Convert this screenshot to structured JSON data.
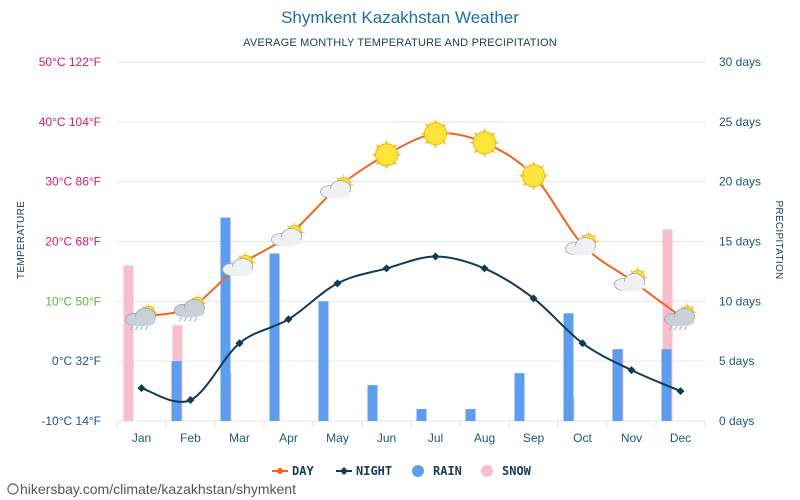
{
  "page": {
    "title": "Shymkent Kazakhstan Weather",
    "subtitle": "AVERAGE MONTHLY TEMPERATURE AND PRECIPITATION",
    "watermark": "hikersbay.com/climate/kazakhstan/shymkent"
  },
  "chart_data": {
    "type": "line+bar",
    "title": "Shymkent Kazakhstan Weather",
    "subtitle": "AVERAGE MONTHLY TEMPERATURE AND PRECIPITATION",
    "ylabel_left": "TEMPERATURE",
    "ylabel_right": "PRECIPITATION",
    "categories": [
      "Jan",
      "Feb",
      "Mar",
      "Apr",
      "May",
      "Jun",
      "Jul",
      "Aug",
      "Sep",
      "Oct",
      "Nov",
      "Dec"
    ],
    "left_axis": {
      "range_c": [
        -10,
        50
      ],
      "ticks": [
        {
          "c": 50,
          "label": "50°C 122°F",
          "color": "#d6196b"
        },
        {
          "c": 40,
          "label": "40°C 104°F",
          "color": "#d6196b"
        },
        {
          "c": 30,
          "label": "30°C 86°F",
          "color": "#d6196b"
        },
        {
          "c": 20,
          "label": "20°C 68°F",
          "color": "#d6196b"
        },
        {
          "c": 10,
          "label": "10°C 50°F",
          "color": "#57b93a"
        },
        {
          "c": 0,
          "label": "0°C 32°F",
          "color": "#1e4fa0"
        },
        {
          "c": -10,
          "label": "-10°C 14°F",
          "color": "#1e4fa0"
        }
      ]
    },
    "right_axis": {
      "range_days": [
        0,
        30
      ],
      "ticks": [
        {
          "d": 30,
          "label": "30 days"
        },
        {
          "d": 25,
          "label": "25 days"
        },
        {
          "d": 20,
          "label": "20 days"
        },
        {
          "d": 15,
          "label": "15 days"
        },
        {
          "d": 10,
          "label": "10 days"
        },
        {
          "d": 5,
          "label": "5 days"
        },
        {
          "d": 0,
          "label": "0 days"
        }
      ]
    },
    "grid": true,
    "legend_position": "bottom",
    "series": [
      {
        "name": "DAY",
        "kind": "line",
        "axis": "left",
        "color": "#f0651d",
        "values": [
          7.5,
          9,
          16,
          21,
          29,
          34.5,
          38,
          36.5,
          31,
          19.5,
          13.5,
          7.5
        ]
      },
      {
        "name": "NIGHT",
        "kind": "line",
        "axis": "left",
        "color": "#0f3b57",
        "values": [
          -4.5,
          -6.5,
          3,
          7,
          13,
          15.5,
          17.5,
          15.5,
          10.5,
          3,
          -1.5,
          -5
        ]
      },
      {
        "name": "RAIN",
        "kind": "bar",
        "axis": "right",
        "color": "#5e9cee",
        "values": [
          0,
          5,
          17,
          14,
          10,
          3,
          1,
          1,
          4,
          9,
          6,
          6
        ]
      },
      {
        "name": "SNOW",
        "kind": "bar",
        "axis": "right",
        "color": "#f7bfcd",
        "values": [
          13,
          8,
          4,
          0,
          0,
          0,
          0,
          0,
          0,
          2,
          6,
          16
        ]
      }
    ],
    "weather_icons": [
      "rain-cloud",
      "rain-cloud",
      "sun-cloud",
      "sun-cloud",
      "sun-cloud",
      "sun",
      "sun",
      "sun",
      "sun",
      "sun-cloud",
      "sun-cloud",
      "rain-cloud"
    ]
  }
}
